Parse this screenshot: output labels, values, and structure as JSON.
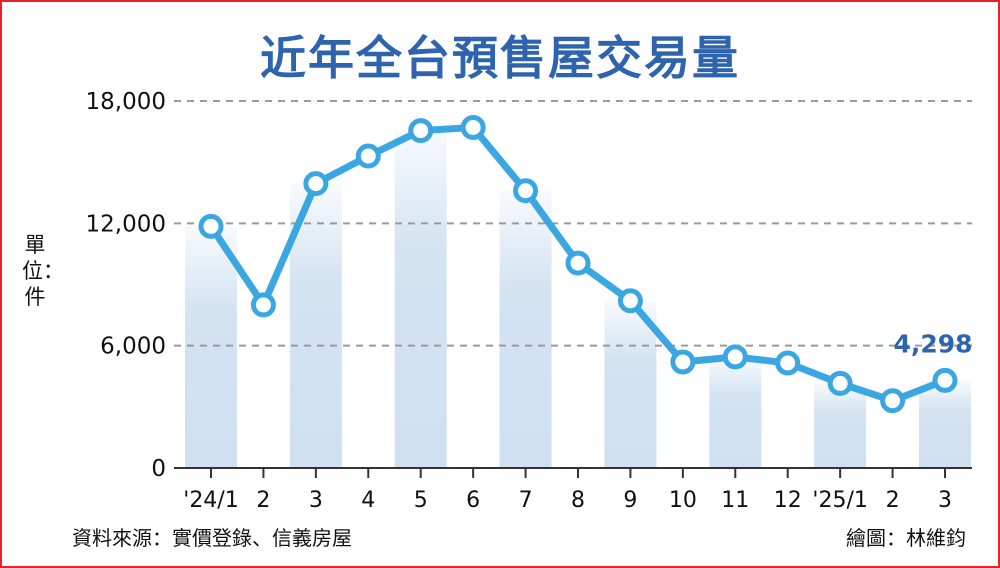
{
  "colors": {
    "frame": "#e8212a",
    "title": "#2d64ad",
    "line": "#3aa7e3",
    "marker_fill": "#ffffff",
    "bar": "#cfe0f1",
    "grid": "#9a9a9a",
    "annotation": "#2d64ad"
  },
  "chart_data": {
    "type": "line",
    "title": "近年全台預售屋交易量",
    "ylabel": "單位：件",
    "categories": [
      "'24/1",
      "2",
      "3",
      "4",
      "5",
      "6",
      "7",
      "8",
      "9",
      "10",
      "11",
      "12",
      "'25/1",
      "2",
      "3"
    ],
    "yticks": [
      "0",
      "6,000",
      "12,000",
      "18,000"
    ],
    "ylim": [
      0,
      18000
    ],
    "grid": true,
    "series": [
      {
        "values": [
          11850,
          8000,
          13950,
          15300,
          16550,
          16700,
          13600,
          10050,
          8200,
          5200,
          5450,
          5150,
          4150,
          3300,
          4298
        ]
      }
    ],
    "background_bars": [
      11850,
      8000,
      13950,
      15300,
      16550,
      16700,
      13600,
      10050,
      8200,
      5200,
      5450,
      5150,
      4150,
      3300,
      4298
    ],
    "annotations": [
      {
        "index": 14,
        "text": "4,298"
      }
    ]
  },
  "footer": {
    "source": "資料來源：實價登錄、信義房屋",
    "credit": "繪圖：林維鈞"
  }
}
